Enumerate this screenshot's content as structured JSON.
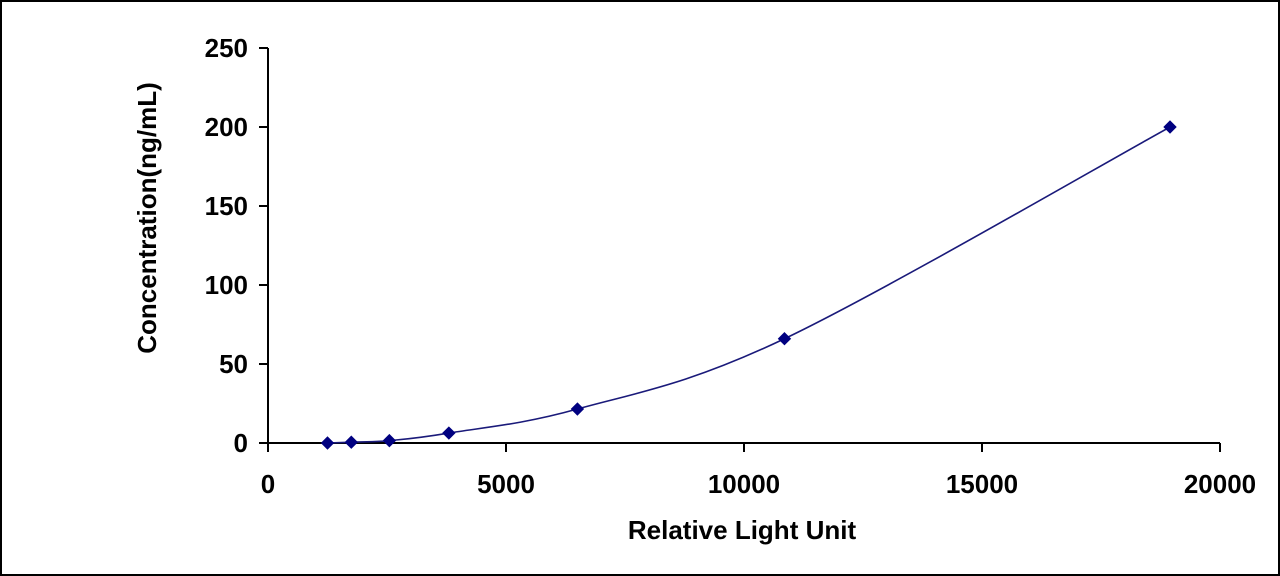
{
  "chart_data": {
    "type": "scatter",
    "title": "",
    "xlabel": "Relative Light Unit",
    "ylabel": "Concentration(ng/mL)",
    "xlim": [
      0,
      20000
    ],
    "ylim": [
      0,
      250
    ],
    "xticks": [
      0,
      5000,
      10000,
      15000,
      20000
    ],
    "yticks": [
      0,
      50,
      100,
      150,
      200,
      250
    ],
    "grid": false,
    "legend": "none",
    "smooth_line": true,
    "series": [
      {
        "marker": "diamond",
        "color": "#000080",
        "line_color": "#1a1a7a",
        "x": [
          1250,
          1750,
          2550,
          3800,
          6500,
          10850,
          18950
        ],
        "y": [
          0,
          0.5,
          1.5,
          6.3,
          21.5,
          66,
          200
        ]
      }
    ]
  }
}
